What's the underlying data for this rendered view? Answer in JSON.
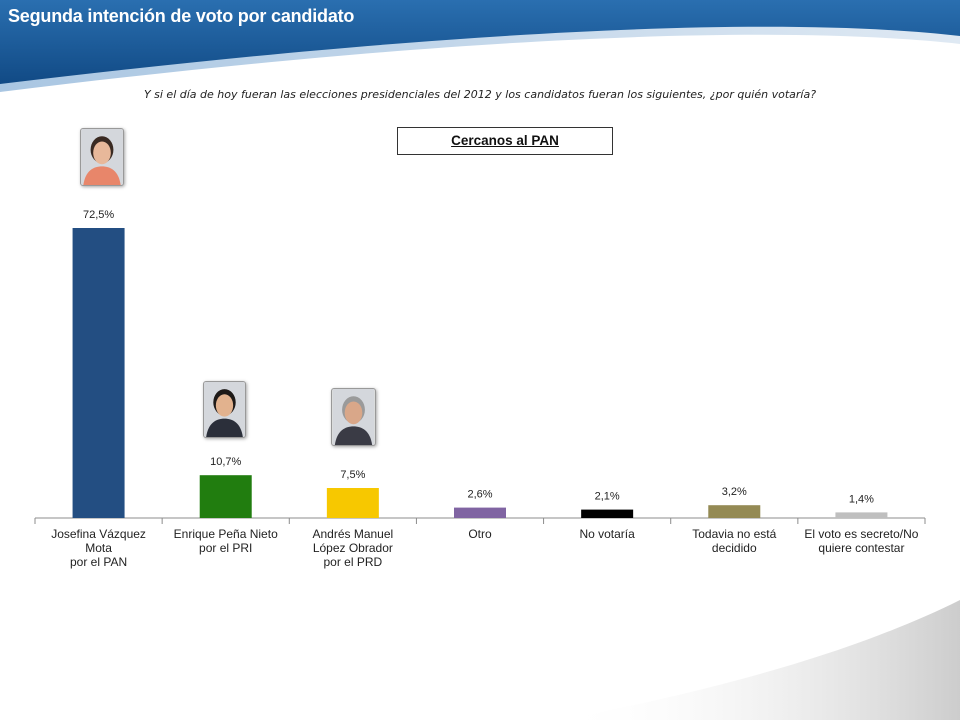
{
  "slide": {
    "title": "Segunda intención de voto por candidato",
    "question": "Y si el día de hoy fueran las elecciones presidenciales del 2012 y los candidatos fueran los siguientes, ¿por quién votaría?",
    "segment": "Cercanos al PAN"
  },
  "colors": {
    "header": "#1b5a99",
    "pan": "#234e82",
    "pri": "#217d0f",
    "prd": "#f7c800",
    "otro": "#8064a2",
    "no_votaria": "#000000",
    "no_decidido": "#948a54",
    "secreto": "#bfbfbf"
  },
  "chart_data": {
    "type": "bar",
    "title": "",
    "xlabel": "",
    "ylabel": "",
    "ylim": [
      0,
      80
    ],
    "categories": [
      "Josefina Vázquez Mota por el PAN",
      "Enrique Peña Nieto por el PRI",
      "Andrés Manuel López Obrador por el PRD",
      "Otro",
      "No votaría",
      "Todavia no está decidido",
      "El voto es secreto/No quiere contestar"
    ],
    "category_lines": [
      [
        "Josefina Vázquez",
        "Mota",
        "por el PAN"
      ],
      [
        "Enrique Peña Nieto",
        "por el PRI"
      ],
      [
        "Andrés Manuel",
        "López Obrador",
        "por el PRD"
      ],
      [
        "Otro"
      ],
      [
        "No votaría"
      ],
      [
        "Todavia no está",
        "decidido"
      ],
      [
        "El voto es secreto/No",
        "quiere contestar"
      ]
    ],
    "values": [
      72.5,
      10.7,
      7.5,
      2.6,
      2.1,
      3.2,
      1.4
    ],
    "labels": [
      "72,5%",
      "10,7%",
      "7,5%",
      "2,6%",
      "2,1%",
      "3,2%",
      "1,4%"
    ],
    "bar_colors": [
      "#234e82",
      "#217d0f",
      "#f7c800",
      "#8064a2",
      "#000000",
      "#948a54",
      "#bfbfbf"
    ],
    "grid": false,
    "legend": "none"
  },
  "photos": [
    {
      "name": "josefina-vazquez-mota-photo",
      "category_index": 0
    },
    {
      "name": "enrique-pena-nieto-photo",
      "category_index": 1
    },
    {
      "name": "andres-manuel-lopez-obrador-photo",
      "category_index": 2
    }
  ]
}
